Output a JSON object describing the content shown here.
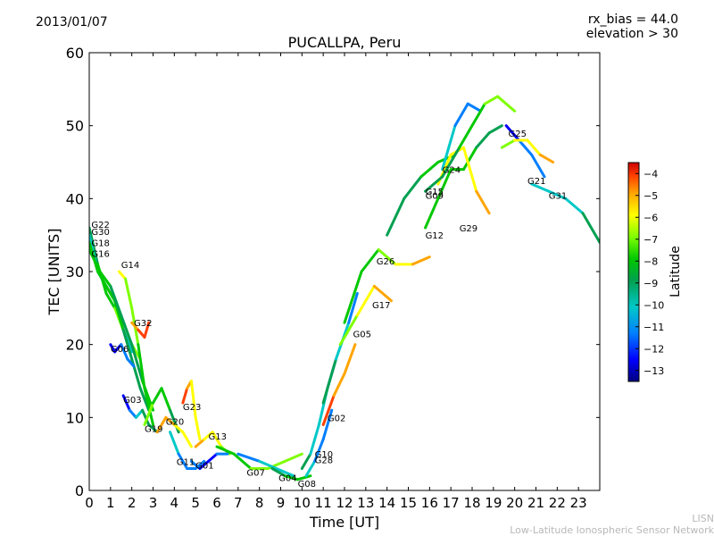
{
  "header": {
    "date": "2013/01/07",
    "rx_bias": "rx_bias = 44.0",
    "elevation": "elevation > 30"
  },
  "credit": {
    "line1": "LISN",
    "line2": "Low-Latitude Ionospheric Sensor Network"
  },
  "colormap": [
    "#00007f",
    "#0000ff",
    "#007fff",
    "#00c8c8",
    "#00a050",
    "#00c800",
    "#7fff00",
    "#ffff00",
    "#ffa500",
    "#ff4000",
    "#cc0000"
  ],
  "chart_data": {
    "type": "scatter",
    "title": "PUCALLPA, Peru",
    "xlabel": "Time [UT]",
    "ylabel": "TEC [UNITS]",
    "xlim": [
      0,
      24
    ],
    "ylim": [
      0,
      60
    ],
    "xticks": [
      0,
      1,
      2,
      3,
      4,
      5,
      6,
      7,
      8,
      9,
      10,
      11,
      12,
      13,
      14,
      15,
      16,
      17,
      18,
      19,
      20,
      21,
      22,
      23
    ],
    "yticks": [
      0,
      10,
      20,
      30,
      40,
      50,
      60
    ],
    "grid": false,
    "colorbar": {
      "label": "Latitude",
      "range": [
        -13.5,
        -3.5
      ],
      "ticks": [
        -4,
        -5,
        -6,
        -7,
        -8,
        -9,
        -10,
        -11,
        -12,
        -13
      ]
    },
    "series": [
      {
        "name": "G22",
        "label_at": [
          0.1,
          36.5
        ],
        "x": [
          0.0,
          0.4,
          0.8,
          1.2,
          1.6,
          2.0,
          2.4
        ],
        "y": [
          36,
          31,
          27,
          25,
          22,
          20,
          18
        ],
        "lat": [
          -9.5,
          -9.0,
          -8.5,
          -8.0,
          -7.5,
          -7.5,
          -7.0
        ]
      },
      {
        "name": "G30",
        "label_at": [
          0.1,
          35.5
        ],
        "x": [
          0.0,
          0.4,
          0.8,
          1.2,
          1.6,
          2.0
        ],
        "y": [
          35,
          30,
          28,
          26,
          22,
          19
        ],
        "lat": [
          -10.5,
          -10.5,
          -10.0,
          -10.0,
          -11.0,
          -11.0
        ]
      },
      {
        "name": "G18",
        "label_at": [
          0.1,
          34.0
        ],
        "x": [
          0.0,
          0.4,
          0.8,
          1.2,
          1.6,
          2.0,
          2.4,
          2.8
        ],
        "y": [
          34,
          30,
          28,
          26,
          22,
          18,
          14,
          11
        ],
        "lat": [
          -8.5,
          -8.5,
          -8.5,
          -9.0,
          -9.0,
          -9.5,
          -9.5,
          -10.0
        ]
      },
      {
        "name": "G16",
        "label_at": [
          0.1,
          32.5
        ],
        "x": [
          0.0,
          0.5,
          1.0,
          1.5,
          2.0,
          2.5,
          3.0
        ],
        "y": [
          33,
          30,
          28,
          24,
          20,
          15,
          11
        ],
        "lat": [
          -8.0,
          -8.5,
          -9.0,
          -9.5,
          -9.5,
          -9.0,
          -9.0
        ]
      },
      {
        "name": "G14",
        "label_at": [
          1.5,
          31.0
        ],
        "x": [
          1.4,
          1.7,
          2.0,
          2.3,
          2.6,
          3.0
        ],
        "y": [
          30,
          29,
          25,
          20,
          14,
          9
        ],
        "lat": [
          -7.0,
          -7.0,
          -7.5,
          -8.0,
          -8.5,
          -9.0
        ]
      },
      {
        "name": "G32",
        "label_at": [
          2.1,
          23.0
        ],
        "x": [
          2.0,
          2.3,
          2.6,
          2.8
        ],
        "y": [
          23,
          22,
          21,
          23
        ],
        "lat": [
          -5.5,
          -5.0,
          -4.5,
          -4.0
        ]
      },
      {
        "name": "G06",
        "label_at": [
          1.0,
          19.5
        ],
        "x": [
          1.0,
          1.2,
          1.5,
          1.8,
          2.1
        ],
        "y": [
          20,
          19,
          20,
          18,
          17
        ],
        "lat": [
          -12.5,
          -12.5,
          -12.0,
          -11.5,
          -11.0
        ]
      },
      {
        "name": "G03",
        "label_at": [
          1.6,
          12.5
        ],
        "x": [
          1.6,
          1.9,
          2.2,
          2.5,
          2.8,
          3.2
        ],
        "y": [
          13,
          11,
          10,
          11,
          9,
          8
        ],
        "lat": [
          -12.5,
          -12.0,
          -11.5,
          -10.5,
          -9.5,
          -9.0
        ]
      },
      {
        "name": "G19",
        "label_at": [
          2.6,
          8.5
        ],
        "x": [
          2.6,
          3.0,
          3.4,
          3.8,
          4.2
        ],
        "y": [
          9,
          12,
          14,
          11,
          8
        ],
        "lat": [
          -7.0,
          -8.0,
          -8.5,
          -9.0,
          -9.5
        ]
      },
      {
        "name": "G20",
        "label_at": [
          3.6,
          9.5
        ],
        "x": [
          3.2,
          3.6,
          4.0,
          4.4,
          4.8
        ],
        "y": [
          8,
          10,
          9,
          8,
          6
        ],
        "lat": [
          -5.0,
          -5.5,
          -6.0,
          -6.5,
          -7.0
        ]
      },
      {
        "name": "G23",
        "label_at": [
          4.4,
          11.5
        ],
        "x": [
          4.4,
          4.6,
          4.8,
          5.0,
          5.2
        ],
        "y": [
          12,
          14,
          15,
          10,
          7
        ],
        "lat": [
          -4.5,
          -5.5,
          -6.0,
          -6.5,
          -7.0
        ]
      },
      {
        "name": "G13",
        "label_at": [
          5.6,
          7.5
        ],
        "x": [
          5.0,
          5.4,
          5.8,
          6.2,
          6.6
        ],
        "y": [
          6,
          7,
          8,
          6,
          5
        ],
        "lat": [
          -6.0,
          -6.0,
          -6.5,
          -7.0,
          -7.5
        ]
      },
      {
        "name": "G11",
        "label_at": [
          4.1,
          4.0
        ],
        "x": [
          3.8,
          4.2,
          4.6,
          5.0,
          5.4
        ],
        "y": [
          8,
          5,
          3,
          3,
          4
        ],
        "lat": [
          -10.5,
          -11.0,
          -11.5,
          -12.0,
          -12.0
        ]
      },
      {
        "name": "G01",
        "label_at": [
          5.0,
          3.5
        ],
        "x": [
          4.8,
          5.2,
          5.6,
          6.0,
          6.5
        ],
        "y": [
          4,
          3,
          4,
          5,
          5
        ],
        "lat": [
          -11.0,
          -12.0,
          -12.5,
          -12.0,
          -11.5
        ]
      },
      {
        "name": "G07",
        "label_at": [
          7.4,
          2.5
        ],
        "x": [
          6.0,
          6.8,
          7.6,
          8.4,
          9.2,
          10.0
        ],
        "y": [
          6,
          5,
          3,
          3,
          4,
          5
        ],
        "lat": [
          -8.5,
          -8.5,
          -8.0,
          -8.0,
          -7.5,
          -7.5
        ]
      },
      {
        "name": "G04",
        "label_at": [
          8.9,
          1.8
        ],
        "x": [
          7.0,
          8.0,
          8.8,
          9.6
        ],
        "y": [
          5,
          4,
          3,
          2
        ],
        "lat": [
          -11.5,
          -11.0,
          -11.0,
          -10.5
        ]
      },
      {
        "name": "G08",
        "label_at": [
          9.8,
          1.0
        ],
        "x": [
          8.6,
          9.2,
          9.8,
          10.4
        ],
        "y": [
          3,
          2,
          1.5,
          2
        ],
        "lat": [
          -9.5,
          -9.0,
          -9.0,
          -8.5
        ]
      },
      {
        "name": "G10",
        "label_at": [
          10.6,
          5.0
        ],
        "x": [
          10.0,
          10.4,
          10.8,
          11.2,
          11.6
        ],
        "y": [
          3,
          5,
          9,
          14,
          18
        ],
        "lat": [
          -10.0,
          -10.0,
          -10.5,
          -11.0,
          -11.5
        ]
      },
      {
        "name": "G28",
        "label_at": [
          10.6,
          4.2
        ],
        "x": [
          10.2,
          10.6,
          11.0,
          11.4
        ],
        "y": [
          2,
          4,
          7,
          11
        ],
        "lat": [
          -11.0,
          -11.0,
          -11.5,
          -12.0
        ]
      },
      {
        "name": "G02",
        "label_at": [
          11.2,
          10.0
        ],
        "x": [
          11.0,
          11.5,
          12.0,
          12.5
        ],
        "y": [
          9,
          13,
          16,
          20
        ],
        "lat": [
          -4.5,
          -5.0,
          -5.5,
          -6.0
        ]
      },
      {
        "name": "G05",
        "label_at": [
          12.4,
          21.5
        ],
        "x": [
          11.0,
          11.6,
          12.2,
          12.6
        ],
        "y": [
          12,
          18,
          23,
          27
        ],
        "lat": [
          -9.5,
          -10.0,
          -11.0,
          -12.0
        ]
      },
      {
        "name": "G17",
        "label_at": [
          13.3,
          25.5
        ],
        "x": [
          11.8,
          12.6,
          13.4,
          14.2
        ],
        "y": [
          20,
          24,
          28,
          26
        ],
        "lat": [
          -8.0,
          -7.0,
          -6.0,
          -4.5
        ]
      },
      {
        "name": "G26",
        "label_at": [
          13.5,
          31.5
        ],
        "x": [
          12.0,
          12.8,
          13.6,
          14.4,
          15.2,
          16.0
        ],
        "y": [
          23,
          30,
          33,
          31,
          31,
          32
        ],
        "lat": [
          -9.0,
          -8.5,
          -8.0,
          -7.0,
          -6.0,
          -4.5
        ]
      },
      {
        "name": "G12",
        "label_at": [
          15.8,
          35.0
        ],
        "x": [
          15.8,
          16.4,
          17.0,
          17.6,
          18.2,
          18.8,
          19.4
        ],
        "y": [
          36,
          40,
          44,
          44,
          47,
          49,
          50
        ],
        "lat": [
          -8.0,
          -8.5,
          -8.5,
          -9.0,
          -9.0,
          -9.5,
          -9.5
        ]
      },
      {
        "name": "G15",
        "label_at": [
          15.8,
          41.0
        ],
        "x": [
          14.0,
          14.8,
          15.6,
          16.4,
          17.2
        ],
        "y": [
          35,
          40,
          43,
          45,
          46
        ],
        "lat": [
          -9.5,
          -9.5,
          -9.0,
          -9.0,
          -8.5
        ]
      },
      {
        "name": "G24",
        "label_at": [
          16.6,
          44.0
        ],
        "x": [
          16.6,
          17.2,
          17.8,
          18.4
        ],
        "y": [
          44,
          50,
          53,
          52
        ],
        "lat": [
          -10.5,
          -11.0,
          -11.5,
          -12.5
        ]
      },
      {
        "name": "G29",
        "label_at": [
          17.4,
          36.0
        ],
        "x": [
          16.4,
          17.0,
          17.6,
          18.2,
          18.8
        ],
        "y": [
          42,
          46,
          47,
          41,
          38
        ],
        "lat": [
          -6.5,
          -6.5,
          -7.0,
          -6.0,
          -5.0
        ]
      },
      {
        "name": "G09",
        "label_at": [
          15.8,
          40.5
        ],
        "x": [
          15.8,
          16.6,
          17.4,
          18.0,
          18.6,
          19.2,
          20.0
        ],
        "y": [
          41,
          43,
          47,
          50,
          53,
          54,
          52
        ],
        "lat": [
          -10.0,
          -10.0,
          -9.0,
          -8.5,
          -8.0,
          -8.0,
          -7.5
        ]
      },
      {
        "name": "G25",
        "label_at": [
          19.7,
          49.0
        ],
        "x": [
          19.6,
          20.2,
          20.8,
          21.4
        ],
        "y": [
          50,
          48,
          46,
          43
        ],
        "lat": [
          -12.5,
          -12.0,
          -11.5,
          -11.0
        ]
      },
      {
        "name": "G21",
        "label_at": [
          20.6,
          42.5
        ],
        "x": [
          19.4,
          20.0,
          20.6,
          21.2,
          21.8
        ],
        "y": [
          47,
          48,
          48,
          46,
          45
        ],
        "lat": [
          -7.5,
          -7.0,
          -6.5,
          -6.0,
          -5.5
        ]
      },
      {
        "name": "G31",
        "label_at": [
          21.6,
          40.5
        ],
        "x": [
          20.8,
          21.6,
          22.4,
          23.2,
          24.0
        ],
        "y": [
          42,
          41,
          40,
          38,
          34
        ],
        "lat": [
          -11.0,
          -11.0,
          -10.5,
          -10.0,
          -9.5
        ]
      }
    ]
  }
}
